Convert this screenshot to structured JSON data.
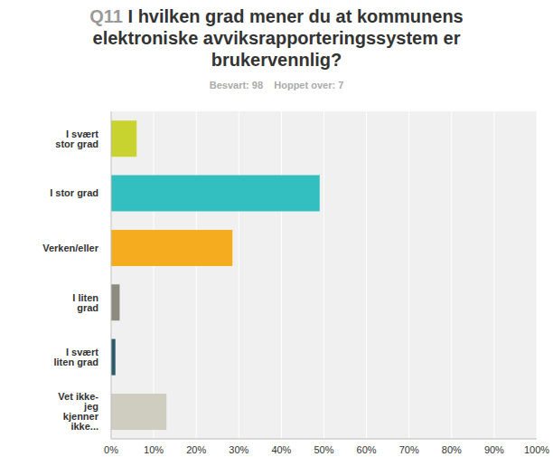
{
  "chart_data": {
    "type": "bar",
    "orientation": "horizontal",
    "title": "Q11 I hvilken grad mener du at kommunens elektroniske avviksrapporteringssystem er brukervennlig?",
    "subtitle": "Besvart: 98    Hoppet over: 7",
    "categories": [
      "I svært stor grad",
      "I stor grad",
      "Verken/eller",
      "I liten grad",
      "I svært liten grad",
      "Vet ikke- jeg kjenner ikke..."
    ],
    "values": [
      6,
      49,
      28.5,
      2,
      1,
      13
    ],
    "colors": [
      "#c9d330",
      "#33bfbf",
      "#f5ad1f",
      "#8c8c7e",
      "#2c5b6b",
      "#cfcdbf"
    ],
    "xlim": [
      0,
      100
    ],
    "xticks": [
      {
        "value": 0,
        "label": "0%"
      },
      {
        "value": 10,
        "label": "10%"
      },
      {
        "value": 20,
        "label": "20%"
      },
      {
        "value": 30,
        "label": "30%"
      },
      {
        "value": 40,
        "label": "40%"
      },
      {
        "value": 50,
        "label": "50%"
      },
      {
        "value": 60,
        "label": "60%"
      },
      {
        "value": 70,
        "label": "70%"
      },
      {
        "value": 80,
        "label": "80%"
      },
      {
        "value": 90,
        "label": "90%"
      },
      {
        "value": 100,
        "label": "100%"
      }
    ],
    "grid": true
  }
}
